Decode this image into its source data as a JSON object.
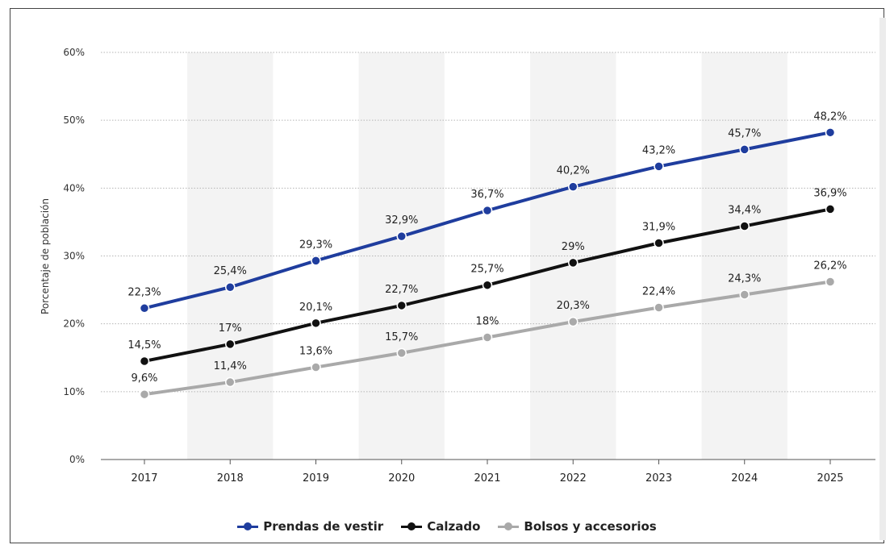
{
  "chart_data": {
    "type": "line",
    "title": "",
    "xlabel": "",
    "ylabel": "Porcentaje de población",
    "categories": [
      "2017",
      "2018",
      "2019",
      "2020",
      "2021",
      "2022",
      "2023",
      "2024",
      "2025"
    ],
    "ylim": [
      0,
      60
    ],
    "yticks": [
      "0%",
      "10%",
      "20%",
      "30%",
      "40%",
      "50%",
      "60%"
    ],
    "grid": true,
    "legend_position": "bottom",
    "series": [
      {
        "name": "Prendas de vestir",
        "color": "#1f3d9e",
        "values": [
          22.3,
          25.4,
          29.3,
          32.9,
          36.7,
          40.2,
          43.2,
          45.7,
          48.2
        ],
        "labels": [
          "22,3%",
          "25,4%",
          "29,3%",
          "32,9%",
          "36,7%",
          "40,2%",
          "43,2%",
          "45,7%",
          "48,2%"
        ]
      },
      {
        "name": "Calzado",
        "color": "#111111",
        "values": [
          14.5,
          17,
          20.1,
          22.7,
          25.7,
          29,
          31.9,
          34.4,
          36.9
        ],
        "labels": [
          "14,5%",
          "17%",
          "20,1%",
          "22,7%",
          "25,7%",
          "29%",
          "31,9%",
          "34,4%",
          "36,9%"
        ]
      },
      {
        "name": "Bolsos y accesorios",
        "color": "#a9a9a9",
        "values": [
          9.6,
          11.4,
          13.6,
          15.7,
          18,
          20.3,
          22.4,
          24.3,
          26.2
        ],
        "labels": [
          "9,6%",
          "11,4%",
          "13,6%",
          "15,7%",
          "18%",
          "20,3%",
          "22,4%",
          "24,3%",
          "26,2%"
        ]
      }
    ]
  }
}
